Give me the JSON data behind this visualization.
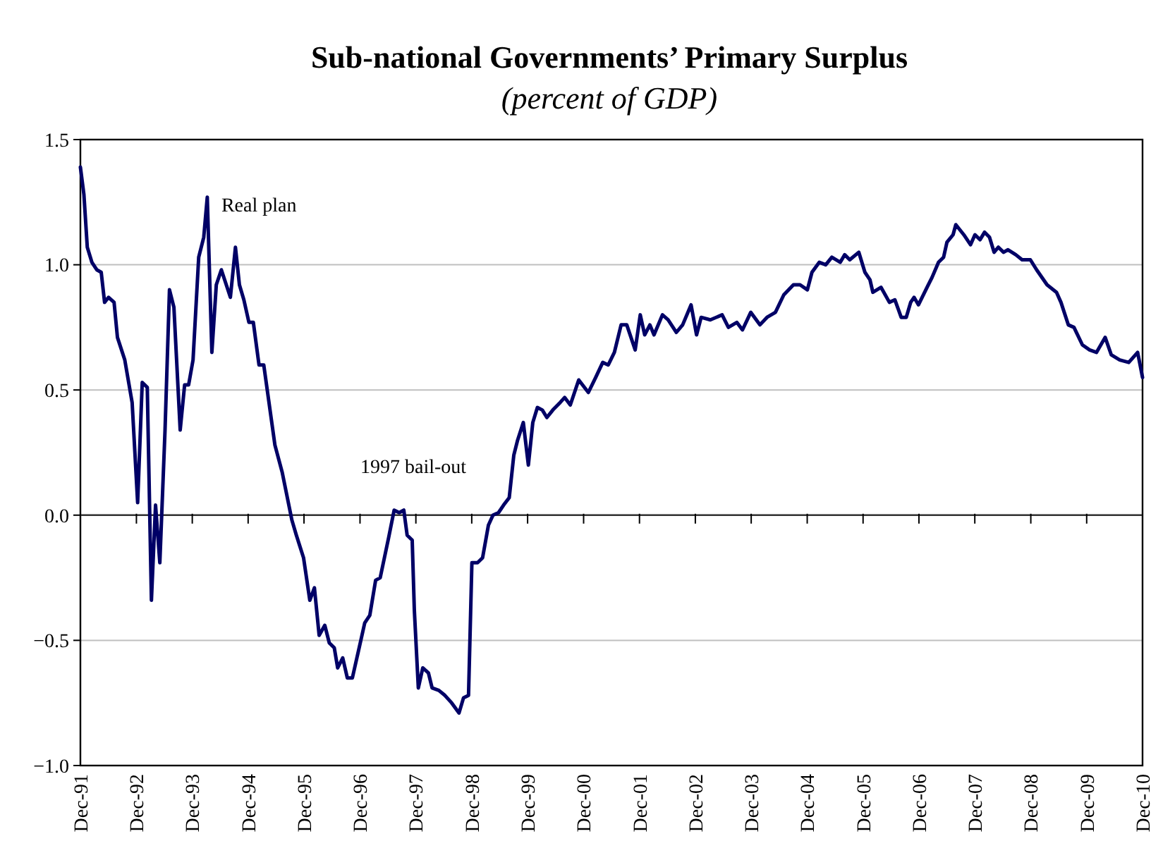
{
  "chart_data": {
    "type": "line",
    "title": "Sub-national Governments’ Primary Surplus",
    "subtitle": "(percent of GDP)",
    "x": [
      "1991-12-01",
      "1991-12-24",
      "1992-01-15",
      "1992-02-14",
      "1992-03-17",
      "1992-04-15",
      "1992-05-07",
      "1992-06-02",
      "1992-07-08",
      "1992-07-30",
      "1992-09-16",
      "1992-11-03",
      "1992-12-09",
      "1993-01-08",
      "1993-02-10",
      "1993-03-09",
      "1993-04-05",
      "1993-05-03",
      "1993-06-06",
      "1993-07-05",
      "1993-08-03",
      "1993-09-13",
      "1993-10-12",
      "1993-11-07",
      "1993-12-06",
      "1994-01-12",
      "1994-02-14",
      "1994-03-09",
      "1994-04-08",
      "1994-05-07",
      "1994-06-09",
      "1994-08-07",
      "1994-09-09",
      "1994-10-05",
      "1994-11-03",
      "1994-12-06",
      "1995-01-04",
      "1995-02-10",
      "1995-03-13",
      "1995-05-25",
      "1995-07-12",
      "1995-09-13",
      "1995-10-12",
      "1995-11-28",
      "1996-01-08",
      "1996-02-07",
      "1996-03-09",
      "1996-04-15",
      "1996-05-14",
      "1996-06-16",
      "1996-07-08",
      "1996-08-10",
      "1996-09-09",
      "1996-10-12",
      "1996-11-18",
      "1997-01-01",
      "1997-02-03",
      "1997-03-13",
      "1997-04-12",
      "1997-06-06",
      "1997-07-12",
      "1997-08-14",
      "1997-09-13",
      "1997-10-05",
      "1997-11-07",
      "1997-11-21",
      "1997-12-17",
      "1998-01-15",
      "1998-02-21",
      "1998-03-17",
      "1998-04-30",
      "1998-06-09",
      "1998-07-23",
      "1998-09-09",
      "1998-10-08",
      "1998-11-10",
      "1998-12-02",
      "1999-01-08",
      "1999-02-10",
      "1999-03-20",
      "1999-04-19",
      "1999-05-25",
      "1999-06-27",
      "1999-08-03",
      "1999-09-02",
      "1999-09-27",
      "1999-11-03",
      "1999-12-06",
      "2000-01-04",
      "2000-02-03",
      "2000-03-06",
      "2000-04-05",
      "2000-05-14",
      "2000-07-01",
      "2000-07-30",
      "2000-09-05",
      "2000-10-30",
      "2001-01-01",
      "2001-02-18",
      "2001-04-05",
      "2001-05-11",
      "2001-06-20",
      "2001-08-03",
      "2001-09-09",
      "2001-11-03",
      "2001-12-06",
      "2002-01-04",
      "2002-02-07",
      "2002-03-06",
      "2002-04-30",
      "2002-06-06",
      "2002-07-30",
      "2002-09-09",
      "2002-11-03",
      "2002-12-09",
      "2003-01-08",
      "2003-03-09",
      "2003-05-25",
      "2003-07-05",
      "2003-08-29",
      "2003-10-05",
      "2003-11-28",
      "2004-01-27",
      "2004-03-13",
      "2004-05-07",
      "2004-07-01",
      "2004-09-02",
      "2004-10-15",
      "2004-12-02",
      "2005-01-01",
      "2005-02-18",
      "2005-04-01",
      "2005-05-11",
      "2005-07-05",
      "2005-08-03",
      "2005-09-05",
      "2005-11-03",
      "2005-12-13",
      "2006-01-15",
      "2006-02-03",
      "2006-03-28",
      "2006-05-22",
      "2006-06-27",
      "2006-08-07",
      "2006-09-09",
      "2006-10-08",
      "2006-10-30",
      "2006-11-28",
      "2007-01-23",
      "2007-02-25",
      "2007-04-08",
      "2007-05-11",
      "2007-06-02",
      "2007-07-12",
      "2007-07-30",
      "2007-09-20",
      "2007-11-03",
      "2007-12-02",
      "2008-01-04",
      "2008-02-03",
      "2008-03-06",
      "2008-04-05",
      "2008-05-03",
      "2008-06-06",
      "2008-07-05",
      "2008-08-25",
      "2008-10-05",
      "2008-11-28",
      "2009-01-08",
      "2009-03-17",
      "2009-05-18",
      "2009-06-16",
      "2009-08-03",
      "2009-09-09",
      "2009-11-03",
      "2009-12-20",
      "2010-02-03",
      "2010-04-01",
      "2010-05-11",
      "2010-07-05",
      "2010-09-02",
      "2010-10-30",
      "2010-12-01"
    ],
    "series": [
      {
        "color": "#000066",
        "values": [
          1.39,
          1.28,
          1.07,
          1.01,
          0.98,
          0.97,
          0.85,
          0.87,
          0.85,
          0.71,
          0.62,
          0.45,
          0.05,
          0.53,
          0.51,
          -0.34,
          0.04,
          -0.19,
          0.34,
          0.9,
          0.83,
          0.34,
          0.52,
          0.52,
          0.62,
          1.03,
          1.11,
          1.27,
          0.65,
          0.92,
          0.98,
          0.87,
          1.07,
          0.92,
          0.86,
          0.77,
          0.77,
          0.6,
          0.6,
          0.28,
          0.17,
          -0.02,
          -0.08,
          -0.17,
          -0.34,
          -0.29,
          -0.48,
          -0.44,
          -0.51,
          -0.53,
          -0.61,
          -0.57,
          -0.65,
          -0.65,
          -0.55,
          -0.43,
          -0.4,
          -0.26,
          -0.25,
          -0.09,
          0.02,
          0.01,
          0.02,
          -0.08,
          -0.1,
          -0.38,
          -0.69,
          -0.61,
          -0.63,
          -0.69,
          -0.7,
          -0.72,
          -0.75,
          -0.79,
          -0.73,
          -0.72,
          -0.19,
          -0.19,
          -0.17,
          -0.04,
          0.0,
          0.01,
          0.04,
          0.07,
          0.24,
          0.3,
          0.37,
          0.2,
          0.37,
          0.43,
          0.42,
          0.39,
          0.42,
          0.45,
          0.47,
          0.44,
          0.54,
          0.49,
          0.55,
          0.61,
          0.6,
          0.65,
          0.76,
          0.76,
          0.66,
          0.8,
          0.72,
          0.76,
          0.72,
          0.8,
          0.78,
          0.73,
          0.76,
          0.84,
          0.72,
          0.79,
          0.78,
          0.8,
          0.75,
          0.77,
          0.74,
          0.81,
          0.76,
          0.79,
          0.81,
          0.88,
          0.92,
          0.92,
          0.9,
          0.97,
          1.01,
          1.0,
          1.03,
          1.01,
          1.04,
          1.02,
          1.05,
          0.97,
          0.94,
          0.89,
          0.91,
          0.85,
          0.86,
          0.79,
          0.79,
          0.85,
          0.87,
          0.84,
          0.91,
          0.95,
          1.01,
          1.03,
          1.09,
          1.12,
          1.16,
          1.12,
          1.08,
          1.12,
          1.1,
          1.13,
          1.11,
          1.05,
          1.07,
          1.05,
          1.06,
          1.04,
          1.02,
          1.02,
          0.98,
          0.92,
          0.89,
          0.85,
          0.76,
          0.75,
          0.68,
          0.66,
          0.65,
          0.71,
          0.64,
          0.62,
          0.61,
          0.65,
          0.55
        ]
      }
    ],
    "xlim": [
      "1991-12-01",
      "2010-12-01"
    ],
    "xticks": [
      {
        "value": "1991-12-01",
        "label": "Dec-91"
      },
      {
        "value": "1992-12-01",
        "label": "Dec-92"
      },
      {
        "value": "1993-12-01",
        "label": "Dec-93"
      },
      {
        "value": "1994-12-01",
        "label": "Dec-94"
      },
      {
        "value": "1995-12-01",
        "label": "Dec-95"
      },
      {
        "value": "1996-12-01",
        "label": "Dec-96"
      },
      {
        "value": "1997-12-01",
        "label": "Dec-97"
      },
      {
        "value": "1998-12-01",
        "label": "Dec-98"
      },
      {
        "value": "1999-12-01",
        "label": "Dec-99"
      },
      {
        "value": "2000-12-01",
        "label": "Dec-00"
      },
      {
        "value": "2001-12-01",
        "label": "Dec-01"
      },
      {
        "value": "2002-12-01",
        "label": "Dec-02"
      },
      {
        "value": "2003-12-01",
        "label": "Dec-03"
      },
      {
        "value": "2004-12-01",
        "label": "Dec-04"
      },
      {
        "value": "2005-12-01",
        "label": "Dec-05"
      },
      {
        "value": "2006-12-01",
        "label": "Dec-06"
      },
      {
        "value": "2007-12-01",
        "label": "Dec-07"
      },
      {
        "value": "2008-12-01",
        "label": "Dec-08"
      },
      {
        "value": "2009-12-01",
        "label": "Dec-09"
      },
      {
        "value": "2010-12-01",
        "label": "Dec-10"
      }
    ],
    "ylim": [
      -1.0,
      1.5
    ],
    "yticks": [
      {
        "value": -1.0,
        "label": "−1.0"
      },
      {
        "value": -0.5,
        "label": "−0.5"
      },
      {
        "value": 0,
        "label": "0.0"
      },
      {
        "value": 0.5,
        "label": "0.5"
      },
      {
        "value": 1.0,
        "label": "1.0"
      },
      {
        "value": 1.5,
        "label": "1.5"
      }
    ],
    "grid": "y",
    "marker": "none",
    "line_style": "solid",
    "annotations": [
      {
        "text": "Real plan",
        "x": "1994-03-09",
        "y": 1.27
      },
      {
        "text": "1997 bail-out",
        "x": "1997-08-14",
        "y": 0.01
      }
    ]
  }
}
